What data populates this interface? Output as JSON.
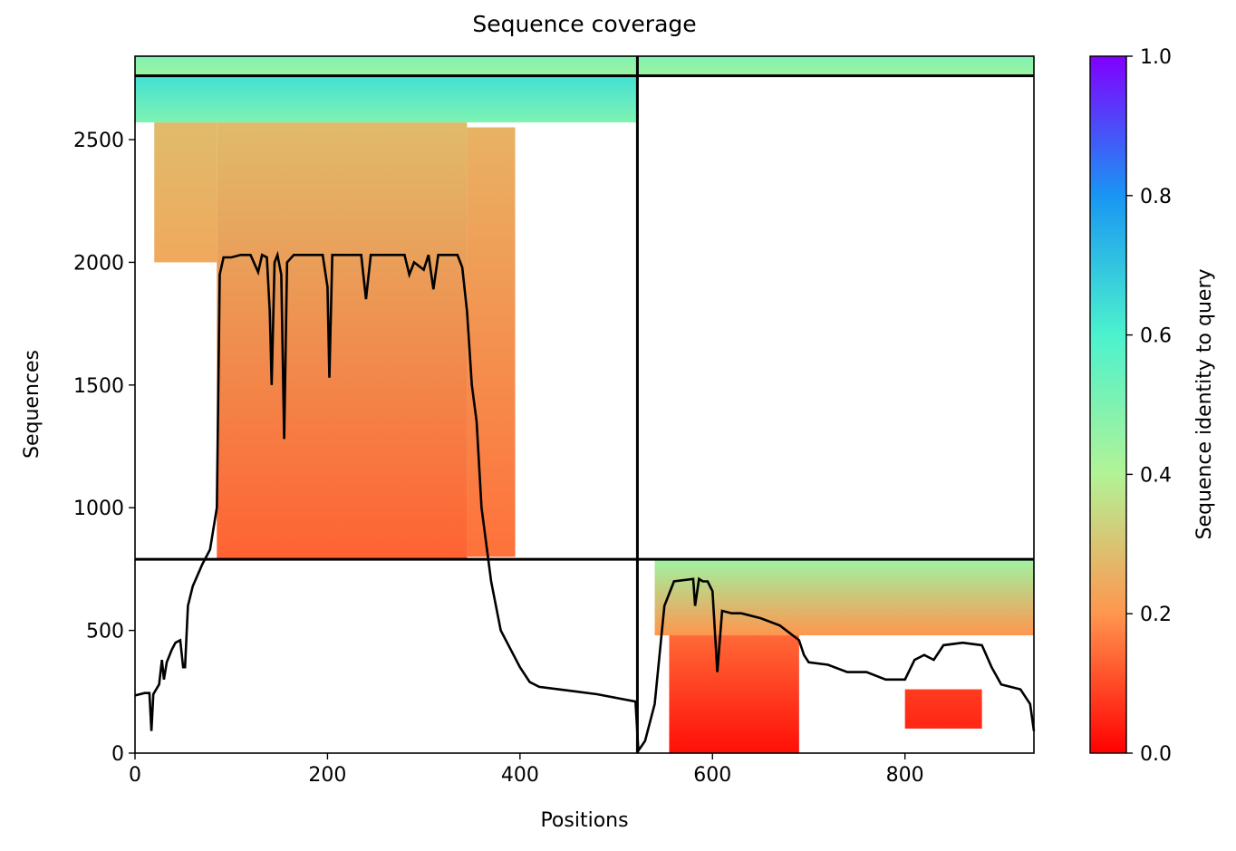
{
  "chart_data": {
    "type": "coverage",
    "title": "Sequence coverage",
    "x_label": "Positions",
    "y_label": "Sequences",
    "colorbar_label": "Sequence identity to query",
    "xlim": [
      0,
      934
    ],
    "ylim": [
      0,
      2840
    ],
    "xticks": [
      0,
      200,
      400,
      600,
      800
    ],
    "yticks": [
      0,
      500,
      1000,
      1500,
      2000,
      2500
    ],
    "colorbar_lim": [
      0,
      1
    ],
    "colorbar_ticks": [
      {
        "value": 0,
        "label": "0.0"
      },
      0.2,
      0.4,
      0.6,
      0.8,
      {
        "value": 1,
        "label": "1.0"
      }
    ],
    "colormap": [
      "#ff0000",
      "#ff964f",
      "#b2f396",
      "#4cf2ce",
      "#1996f3",
      "#8000ff"
    ],
    "line_color": "#000000",
    "hlines": [
      790,
      2760
    ],
    "vlines": [
      522
    ],
    "blocks": [
      {
        "x": [
          0,
          522
        ],
        "y": [
          2760,
          2840
        ],
        "identity": [
          0.44,
          0.5
        ]
      },
      {
        "x": [
          0,
          522
        ],
        "y": [
          2570,
          2760
        ],
        "identity": [
          0.5,
          0.64
        ]
      },
      {
        "x": [
          20,
          85
        ],
        "y": [
          2000,
          2570
        ],
        "identity": [
          0.24,
          0.28
        ]
      },
      {
        "x": [
          85,
          345
        ],
        "y": [
          790,
          2570
        ],
        "identity": [
          0.13,
          0.28
        ]
      },
      {
        "x": [
          345,
          395
        ],
        "y": [
          800,
          2550
        ],
        "identity": [
          0.15,
          0.26
        ]
      },
      {
        "x": [
          522,
          934
        ],
        "y": [
          2760,
          2840
        ],
        "identity": [
          0.44,
          0.5
        ]
      },
      {
        "x": [
          540,
          934
        ],
        "y": [
          480,
          790
        ],
        "identity": [
          0.2,
          0.44
        ]
      },
      {
        "x": [
          555,
          690
        ],
        "y": [
          0,
          480
        ],
        "identity": [
          0.02,
          0.14
        ]
      },
      {
        "x": [
          800,
          880
        ],
        "y": [
          100,
          260
        ],
        "identity": [
          0.05,
          0.08
        ]
      }
    ],
    "x": [
      0,
      10,
      15,
      17,
      19,
      25,
      28,
      30,
      33,
      38,
      42,
      47,
      50,
      52,
      55,
      60,
      70,
      78,
      85,
      88,
      92,
      100,
      110,
      120,
      128,
      132,
      137,
      140,
      142,
      145,
      148,
      152,
      155,
      158,
      165,
      180,
      195,
      200,
      202,
      205,
      220,
      235,
      240,
      245,
      280,
      285,
      290,
      300,
      305,
      310,
      315,
      335,
      340,
      345,
      350,
      355,
      360,
      365,
      370,
      380,
      400,
      410,
      420,
      440,
      480,
      520,
      523,
      530,
      540,
      550,
      560,
      580,
      582,
      586,
      590,
      595,
      600,
      605,
      610,
      620,
      630,
      650,
      670,
      690,
      695,
      700,
      720,
      740,
      760,
      780,
      800,
      810,
      820,
      830,
      840,
      860,
      880,
      890,
      900,
      920,
      930,
      934
    ],
    "values": [
      235,
      245,
      245,
      90,
      240,
      280,
      380,
      300,
      370,
      420,
      450,
      460,
      350,
      350,
      600,
      680,
      770,
      830,
      1000,
      1950,
      2020,
      2020,
      2030,
      2030,
      1960,
      2030,
      2020,
      1800,
      1500,
      2000,
      2030,
      1950,
      1280,
      2000,
      2030,
      2030,
      2030,
      1900,
      1530,
      2030,
      2030,
      2030,
      1850,
      2030,
      2030,
      1950,
      2000,
      1970,
      2030,
      1890,
      2030,
      2030,
      1980,
      1800,
      1500,
      1350,
      1000,
      850,
      700,
      500,
      350,
      290,
      270,
      260,
      240,
      210,
      10,
      50,
      200,
      600,
      700,
      710,
      600,
      710,
      700,
      700,
      660,
      330,
      580,
      570,
      570,
      550,
      520,
      460,
      400,
      370,
      360,
      330,
      330,
      300,
      300,
      380,
      400,
      380,
      440,
      450,
      440,
      350,
      280,
      260,
      200,
      90
    ]
  }
}
